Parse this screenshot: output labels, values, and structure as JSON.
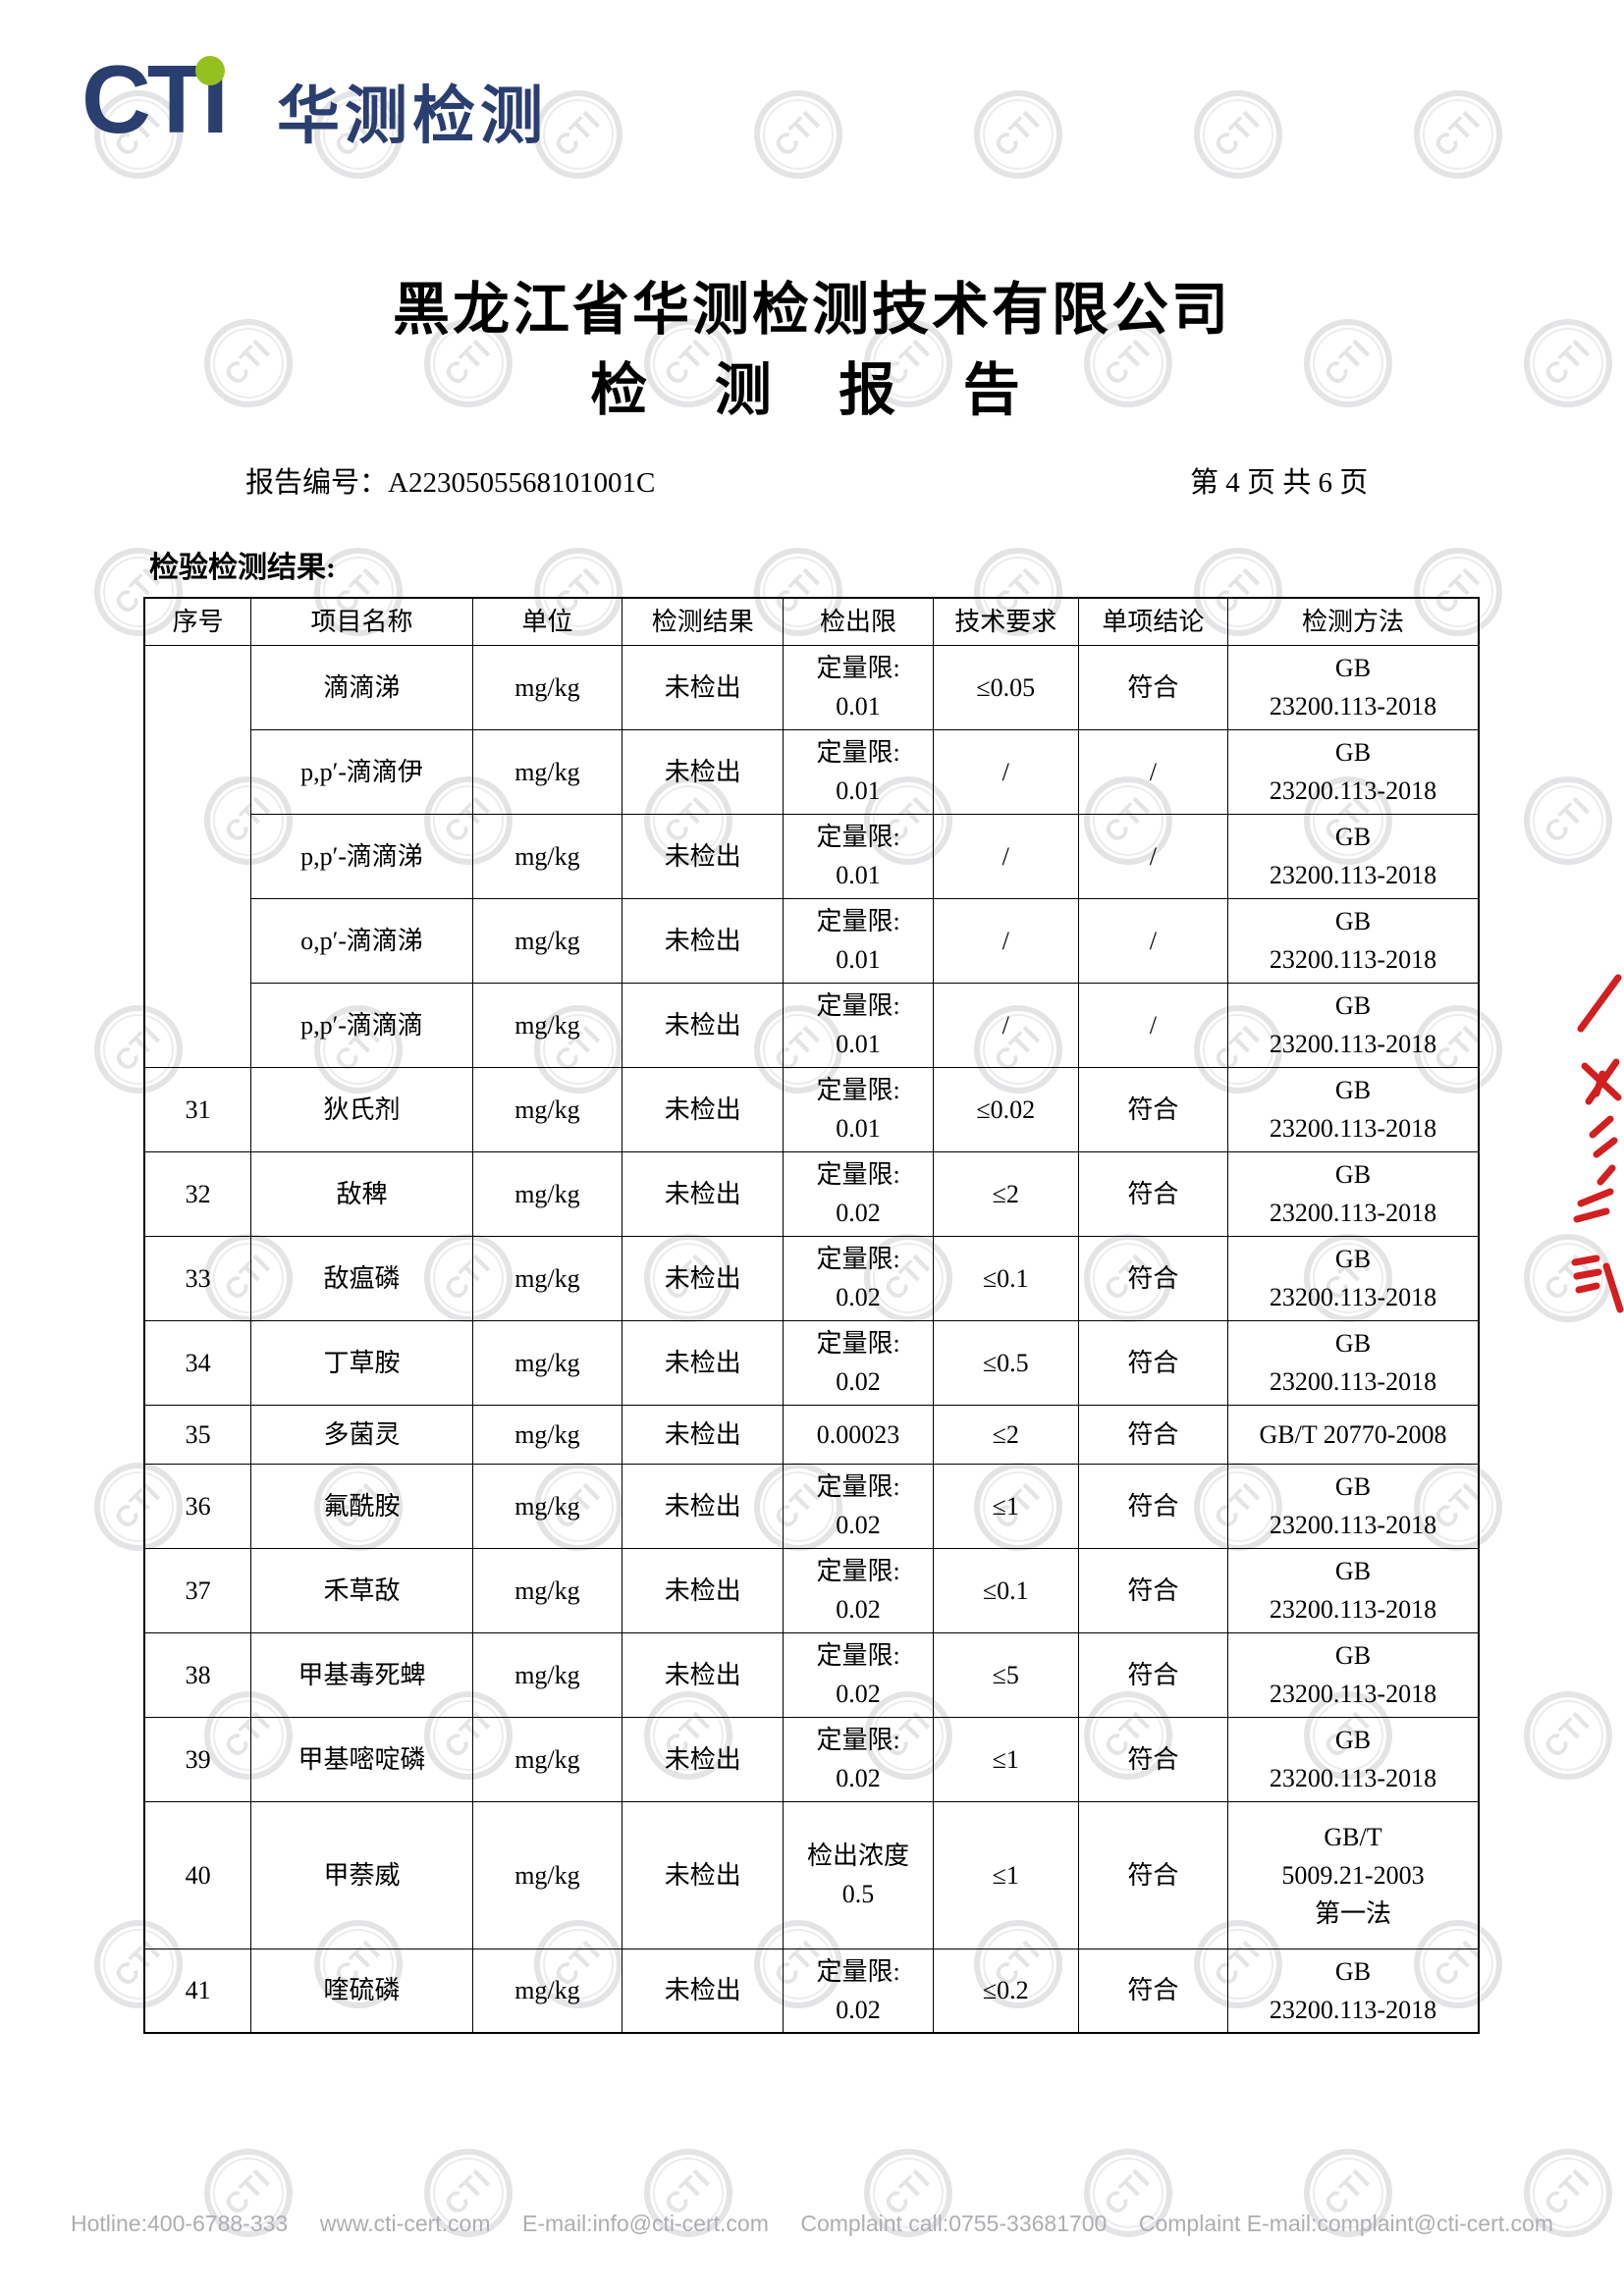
{
  "logo": {
    "cti": "CTI",
    "cjk": "华测检测"
  },
  "watermark": {
    "text": "CTI"
  },
  "header": {
    "company_title": "黑龙江省华测检测技术有限公司",
    "report_title": "检 测 报 告",
    "report_no": "报告编号：A2230505568101001C",
    "page_info": "第 4 页 共 6 页",
    "section_label": "检验检测结果:"
  },
  "table": {
    "headers": [
      "序号",
      "项目名称",
      "单位",
      "检测结果",
      "检出限",
      "技术要求",
      "单项结论",
      "检测方法"
    ],
    "rows": [
      {
        "no": "",
        "no_rowspan": 5,
        "name": "滴滴涕",
        "unit": "mg/kg",
        "result": "未检出",
        "limit": "定量限:\n0.01",
        "requirement": "≤0.05",
        "conclusion": "符合",
        "method": "GB\n23200.113-2018"
      },
      {
        "no_skip": true,
        "name": "p,p′-滴滴伊",
        "unit": "mg/kg",
        "result": "未检出",
        "limit": "定量限:\n0.01",
        "requirement": "/",
        "conclusion": "/",
        "method": "GB\n23200.113-2018"
      },
      {
        "no_skip": true,
        "name": "p,p′-滴滴涕",
        "unit": "mg/kg",
        "result": "未检出",
        "limit": "定量限:\n0.01",
        "requirement": "/",
        "conclusion": "/",
        "method": "GB\n23200.113-2018"
      },
      {
        "no_skip": true,
        "name": "o,p′-滴滴涕",
        "unit": "mg/kg",
        "result": "未检出",
        "limit": "定量限:\n0.01",
        "requirement": "/",
        "conclusion": "/",
        "method": "GB\n23200.113-2018"
      },
      {
        "no_skip": true,
        "name": "p,p′-滴滴滴",
        "unit": "mg/kg",
        "result": "未检出",
        "limit": "定量限:\n0.01",
        "requirement": "/",
        "conclusion": "/",
        "method": "GB\n23200.113-2018"
      },
      {
        "no": "31",
        "name": "狄氏剂",
        "unit": "mg/kg",
        "result": "未检出",
        "limit": "定量限:\n0.01",
        "requirement": "≤0.02",
        "conclusion": "符合",
        "method": "GB\n23200.113-2018"
      },
      {
        "no": "32",
        "name": "敌稗",
        "unit": "mg/kg",
        "result": "未检出",
        "limit": "定量限:\n0.02",
        "requirement": "≤2",
        "conclusion": "符合",
        "method": "GB\n23200.113-2018"
      },
      {
        "no": "33",
        "name": "敌瘟磷",
        "unit": "mg/kg",
        "result": "未检出",
        "limit": "定量限:\n0.02",
        "requirement": "≤0.1",
        "conclusion": "符合",
        "method": "GB\n23200.113-2018"
      },
      {
        "no": "34",
        "name": "丁草胺",
        "unit": "mg/kg",
        "result": "未检出",
        "limit": "定量限:\n0.02",
        "requirement": "≤0.5",
        "conclusion": "符合",
        "method": "GB\n23200.113-2018"
      },
      {
        "no": "35",
        "name": "多菌灵",
        "unit": "mg/kg",
        "result": "未检出",
        "limit": "0.00023",
        "requirement": "≤2",
        "conclusion": "符合",
        "method": "GB/T 20770-2008"
      },
      {
        "no": "36",
        "name": "氟酰胺",
        "unit": "mg/kg",
        "result": "未检出",
        "limit": "定量限:\n0.02",
        "requirement": "≤1",
        "conclusion": "符合",
        "method": "GB\n23200.113-2018"
      },
      {
        "no": "37",
        "name": "禾草敌",
        "unit": "mg/kg",
        "result": "未检出",
        "limit": "定量限:\n0.02",
        "requirement": "≤0.1",
        "conclusion": "符合",
        "method": "GB\n23200.113-2018"
      },
      {
        "no": "38",
        "name": "甲基毒死蜱",
        "unit": "mg/kg",
        "result": "未检出",
        "limit": "定量限:\n0.02",
        "requirement": "≤5",
        "conclusion": "符合",
        "method": "GB\n23200.113-2018"
      },
      {
        "no": "39",
        "name": "甲基嘧啶磷",
        "unit": "mg/kg",
        "result": "未检出",
        "limit": "定量限:\n0.02",
        "requirement": "≤1",
        "conclusion": "符合",
        "method": "GB\n23200.113-2018"
      },
      {
        "no": "40",
        "name": "甲萘威",
        "unit": "mg/kg",
        "result": "未检出",
        "limit": "检出浓度\n0.5",
        "requirement": "≤1",
        "conclusion": "符合",
        "method": "GB/T\n5009.21-2003\n第一法"
      },
      {
        "no": "41",
        "name": "喹硫磷",
        "unit": "mg/kg",
        "result": "未检出",
        "limit": "定量限:\n0.02",
        "requirement": "≤0.2",
        "conclusion": "符合",
        "method": "GB\n23200.113-2018"
      }
    ]
  },
  "footer": {
    "items": [
      "Hotline:400-6788-333",
      "www.cti-cert.com",
      "E-mail:info@cti-cert.com",
      "Complaint call:0755-33681700",
      "Complaint E-mail:complaint@cti-cert.com"
    ]
  },
  "colors": {
    "brand_navy": "#2b3e70",
    "brand_green": "#95c11f",
    "seal_red": "#d21f1f",
    "watermark_gray": "#e4e4e7"
  }
}
